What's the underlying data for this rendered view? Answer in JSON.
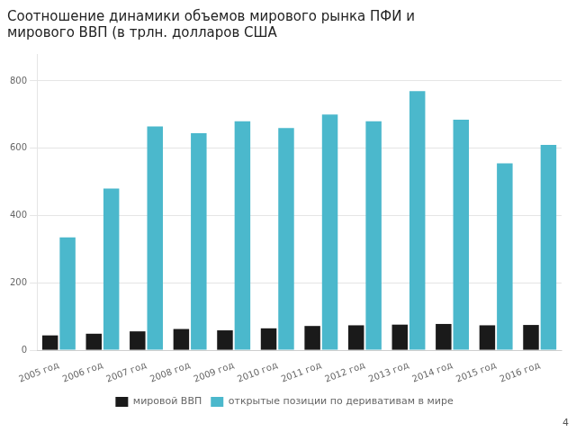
{
  "chart_data": {
    "type": "bar",
    "title": "Соотношение динамики объемов мирового рынка ПФИ и\nмирового ВВП (в трлн. долларов США",
    "annotations": [
      "4"
    ],
    "categories": [
      "2005 год",
      "2006 год",
      "2007 год",
      "2008 год",
      "2009 год",
      "2010 год",
      "2011 год",
      "2012 год",
      "2013 год",
      "2014 год",
      "2015 год",
      "2016 год"
    ],
    "series": [
      {
        "name": "мировой ВВП",
        "color": "#1a1a1a",
        "values": [
          44,
          49,
          56,
          63,
          59,
          65,
          72,
          74,
          76,
          78,
          74,
          75
        ]
      },
      {
        "name": "открытые позиции по деривативам в мире",
        "color": "#4bb8cc",
        "values": [
          335,
          480,
          665,
          645,
          680,
          660,
          700,
          680,
          770,
          685,
          555,
          610
        ]
      }
    ],
    "ylim": [
      0,
      880
    ],
    "yticks": [
      0,
      200,
      400,
      600,
      800
    ],
    "grid": true,
    "legend": "bottom"
  }
}
